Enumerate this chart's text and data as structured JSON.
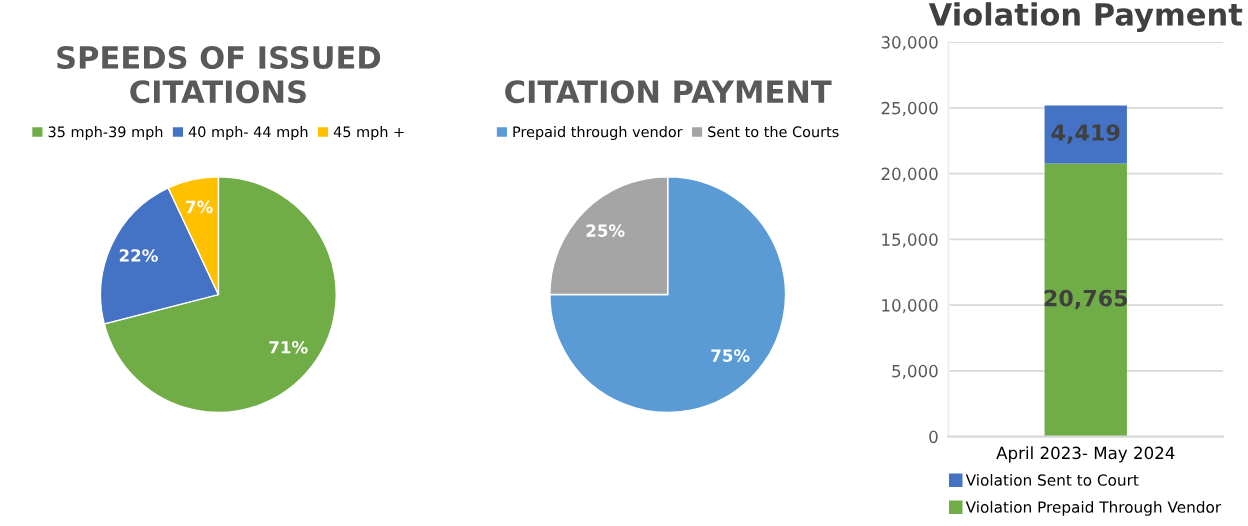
{
  "chart_data": [
    {
      "type": "pie",
      "title": "SPEEDS OF ISSUED\nCITATIONS",
      "categories": [
        "35 mph-39 mph",
        "40 mph- 44 mph",
        "45 mph +"
      ],
      "values": [
        71,
        22,
        7
      ],
      "value_labels": [
        "71%",
        "22%",
        "7%"
      ],
      "colors": [
        "#70ad47",
        "#4472c4",
        "#ffc000"
      ],
      "legend": "top"
    },
    {
      "type": "pie",
      "title": "CITATION PAYMENT",
      "categories": [
        "Prepaid through vendor",
        "Sent to the Courts"
      ],
      "values": [
        75,
        25
      ],
      "value_labels": [
        "75%",
        "25%"
      ],
      "colors": [
        "#5b9bd5",
        "#a5a5a5"
      ],
      "legend": "top"
    },
    {
      "type": "bar",
      "title": "Violation Payment",
      "categories": [
        "April 2023- May 2024"
      ],
      "stacked": true,
      "series": [
        {
          "name": "Violation Prepaid Through Vendor",
          "color": "#70ad47",
          "values": [
            20765
          ],
          "value_labels": [
            "20,765"
          ]
        },
        {
          "name": "Violation Sent to Court",
          "color": "#4472c4",
          "values": [
            4419
          ],
          "value_labels": [
            "4,419"
          ]
        }
      ],
      "ylim": [
        0,
        30000
      ],
      "yticks": [
        {
          "value": 0,
          "label": "0"
        },
        {
          "value": 5000,
          "label": "5,000"
        },
        {
          "value": 10000,
          "label": "10,000"
        },
        {
          "value": 15000,
          "label": "15,000"
        },
        {
          "value": 20000,
          "label": "20,000"
        },
        {
          "value": 25000,
          "label": "25,000"
        },
        {
          "value": 30000,
          "label": "30,000"
        }
      ],
      "grid": "y",
      "legend": "bottom"
    }
  ]
}
